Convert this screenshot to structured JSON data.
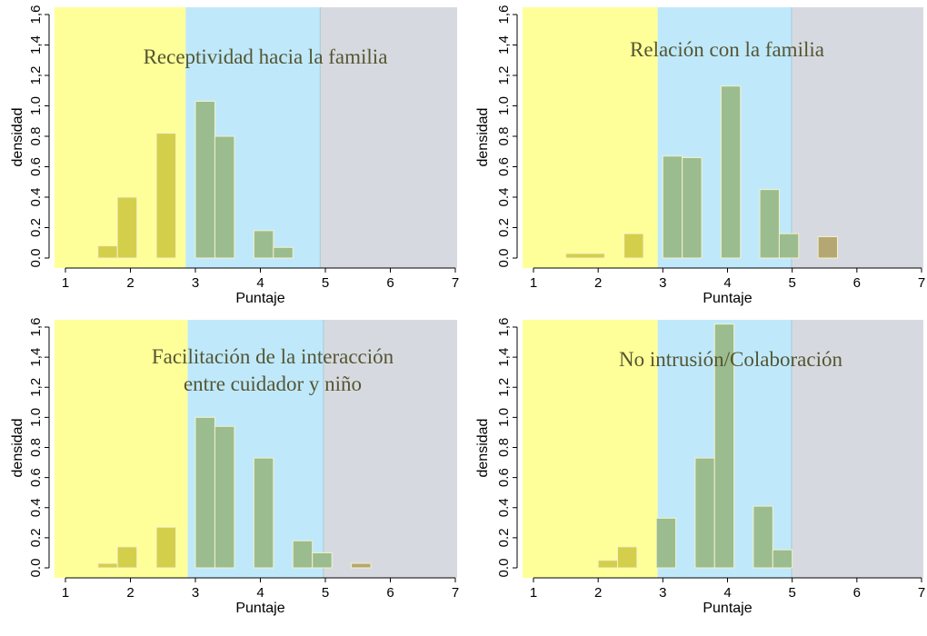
{
  "chart_data": [
    {
      "type": "bar",
      "title": "Receptividad hacia la familia",
      "xlabel": "Puntaje",
      "ylabel": "densidad",
      "xlim": [
        1,
        7
      ],
      "ylim": [
        0,
        1.6
      ],
      "x_ticks": [
        "1",
        "2",
        "3",
        "4",
        "5",
        "6",
        "7"
      ],
      "y_ticks": [
        "0.0",
        "0.2",
        "0.4",
        "0.6",
        "0.8",
        "1.0",
        "1,2",
        "1,4",
        "1,6"
      ],
      "bins": [
        {
          "x0": 1.5,
          "x1": 1.8,
          "y": 0.08
        },
        {
          "x0": 1.8,
          "x1": 2.1,
          "y": 0.4
        },
        {
          "x0": 2.4,
          "x1": 2.7,
          "y": 0.82
        },
        {
          "x0": 3.0,
          "x1": 3.3,
          "y": 1.03
        },
        {
          "x0": 3.3,
          "x1": 3.6,
          "y": 0.8
        },
        {
          "x0": 3.9,
          "x1": 4.2,
          "y": 0.18
        },
        {
          "x0": 4.2,
          "x1": 4.5,
          "y": 0.07
        }
      ],
      "zones": [
        {
          "x0": 1,
          "x1": 2.85,
          "color": "#ffff99"
        },
        {
          "x0": 2.85,
          "x1": 4.92,
          "color": "#bfe9fb"
        },
        {
          "x0": 4.92,
          "x1": 7,
          "color": "#d6dae0"
        }
      ]
    },
    {
      "type": "bar",
      "title": "Relación con la familia",
      "xlabel": "Puntaje",
      "ylabel": "densidad",
      "xlim": [
        1,
        7
      ],
      "ylim": [
        0,
        1.6
      ],
      "x_ticks": [
        "1",
        "2",
        "3",
        "4",
        "5",
        "6",
        "7"
      ],
      "y_ticks": [
        "0.0",
        "0.2",
        "0.4",
        "0.6",
        "0.8",
        "1.0",
        "1,2",
        "1,4",
        "1,6"
      ],
      "bins": [
        {
          "x0": 1.5,
          "x1": 2.1,
          "y": 0.03
        },
        {
          "x0": 2.4,
          "x1": 2.7,
          "y": 0.16
        },
        {
          "x0": 3.0,
          "x1": 3.3,
          "y": 0.67
        },
        {
          "x0": 3.3,
          "x1": 3.6,
          "y": 0.66
        },
        {
          "x0": 3.9,
          "x1": 4.2,
          "y": 1.13
        },
        {
          "x0": 4.5,
          "x1": 4.8,
          "y": 0.45
        },
        {
          "x0": 4.8,
          "x1": 5.1,
          "y": 0.16
        },
        {
          "x0": 5.4,
          "x1": 5.7,
          "y": 0.14
        }
      ],
      "zones": [
        {
          "x0": 1,
          "x1": 2.92,
          "color": "#ffff99"
        },
        {
          "x0": 2.92,
          "x1": 4.99,
          "color": "#bfe9fb"
        },
        {
          "x0": 4.99,
          "x1": 7,
          "color": "#d6dae0"
        }
      ]
    },
    {
      "type": "bar",
      "title": "Facilitación de la interacción entre cuidador y niño",
      "title_lines": [
        "Facilitación de la interacción",
        "entre cuidador y niño"
      ],
      "xlabel": "Puntaje",
      "ylabel": "densidad",
      "xlim": [
        1,
        7
      ],
      "ylim": [
        0,
        1.6
      ],
      "x_ticks": [
        "1",
        "2",
        "3",
        "4",
        "5",
        "6",
        "7"
      ],
      "y_ticks": [
        "0.0",
        "0.2",
        "0.4",
        "0.6",
        "0.8",
        "1.0",
        "1,2",
        "1,4",
        "1,6"
      ],
      "bins": [
        {
          "x0": 1.5,
          "x1": 1.8,
          "y": 0.03
        },
        {
          "x0": 1.8,
          "x1": 2.1,
          "y": 0.14
        },
        {
          "x0": 2.4,
          "x1": 2.7,
          "y": 0.27
        },
        {
          "x0": 3.0,
          "x1": 3.3,
          "y": 1.0
        },
        {
          "x0": 3.3,
          "x1": 3.6,
          "y": 0.94
        },
        {
          "x0": 3.9,
          "x1": 4.2,
          "y": 0.73
        },
        {
          "x0": 4.5,
          "x1": 4.8,
          "y": 0.18
        },
        {
          "x0": 4.8,
          "x1": 5.1,
          "y": 0.1
        },
        {
          "x0": 5.4,
          "x1": 5.7,
          "y": 0.03
        }
      ],
      "zones": [
        {
          "x0": 1,
          "x1": 2.88,
          "color": "#ffff99"
        },
        {
          "x0": 2.88,
          "x1": 4.97,
          "color": "#bfe9fb"
        },
        {
          "x0": 4.97,
          "x1": 7,
          "color": "#d6dae0"
        }
      ]
    },
    {
      "type": "bar",
      "title": "No intrusión/Colaboración",
      "xlabel": "Puntaje",
      "ylabel": "densidad",
      "xlim": [
        1,
        7
      ],
      "ylim": [
        0,
        1.6
      ],
      "x_ticks": [
        "1",
        "2",
        "3",
        "4",
        "5",
        "6",
        "7"
      ],
      "y_ticks": [
        "0.0",
        "0.2",
        "0.4",
        "0.6",
        "0.8",
        "1.0",
        "1,2",
        "1,4",
        "1,6"
      ],
      "bins": [
        {
          "x0": 2.0,
          "x1": 2.3,
          "y": 0.05
        },
        {
          "x0": 2.3,
          "x1": 2.6,
          "y": 0.14
        },
        {
          "x0": 2.9,
          "x1": 3.2,
          "y": 0.33
        },
        {
          "x0": 3.5,
          "x1": 3.8,
          "y": 0.73
        },
        {
          "x0": 3.8,
          "x1": 4.1,
          "y": 1.62
        },
        {
          "x0": 4.4,
          "x1": 4.7,
          "y": 0.41
        },
        {
          "x0": 4.7,
          "x1": 5.0,
          "y": 0.12
        }
      ],
      "zones": [
        {
          "x0": 1,
          "x1": 2.92,
          "color": "#ffff99"
        },
        {
          "x0": 2.92,
          "x1": 4.99,
          "color": "#bfe9fb"
        },
        {
          "x0": 4.99,
          "x1": 7,
          "color": "#d6dae0"
        }
      ]
    }
  ],
  "colors": {
    "bar_on_yellow": "#d4cf4a",
    "bar_on_blue": "#9bbc8e",
    "bar_on_gray": "#b5a773",
    "bar_edge": "#f4f1c9",
    "title": "#555533"
  }
}
